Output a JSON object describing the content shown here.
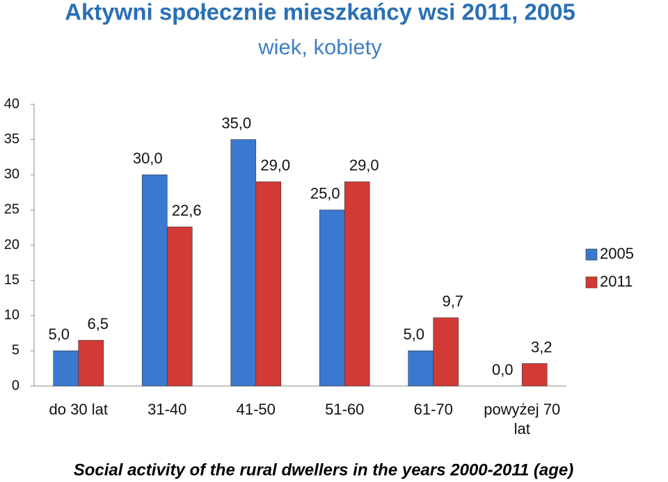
{
  "chart_data": {
    "type": "bar",
    "title": "Aktywni społecznie mieszkańcy wsi 2011, 2005",
    "subtitle": "wiek, kobiety",
    "caption": "Social activity of the rural dwellers in the years 2000-2011 (age)",
    "categories": [
      "do 30 lat",
      "31-40",
      "41-50",
      "51-60",
      "61-70",
      "powyżej 70 lat"
    ],
    "series": [
      {
        "name": "2005",
        "color": "#3b78d0",
        "values": [
          5,
          30,
          35,
          25,
          5,
          0
        ],
        "value_labels": [
          "5,0",
          "30,0",
          "35,0",
          "25,0",
          "5,0",
          "0,0"
        ]
      },
      {
        "name": "2011",
        "color": "#d23a36",
        "values": [
          6.5,
          22.6,
          29,
          29,
          9.7,
          3.2
        ],
        "value_labels": [
          "6,5",
          "22,6",
          "29,0",
          "29,0",
          "9,7",
          "3,2"
        ]
      }
    ],
    "ylim": [
      0,
      40
    ],
    "yticks": [
      0,
      5,
      10,
      15,
      20,
      25,
      30,
      35,
      40
    ],
    "grid": false,
    "legend": "right"
  }
}
